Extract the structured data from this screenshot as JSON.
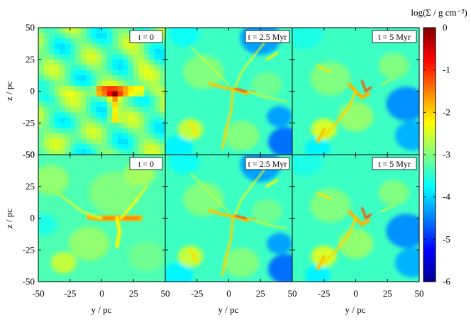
{
  "chart_data": {
    "type": "heatmap",
    "description_units": "projected gas surface density maps",
    "xlabel": "y / pc",
    "ylabel": "z / pc",
    "xlim": [
      -50,
      50
    ],
    "ylim": [
      -50,
      50
    ],
    "xticks": [
      -50,
      -25,
      0,
      25,
      50
    ],
    "yticks": [
      -50,
      -25,
      0,
      25,
      50
    ],
    "x_tick_labels": [
      "-50",
      "-25",
      "0",
      "25",
      "50"
    ],
    "y_tick_labels": [
      "-50",
      "-25",
      "0",
      "25",
      "50"
    ],
    "colorbar": {
      "label": "log(Σ / g cm⁻²)",
      "range": [
        -6,
        0
      ],
      "ticks": [
        0,
        -1,
        -2,
        -3,
        -4,
        -5,
        -6
      ],
      "tick_labels": [
        "0",
        "-1",
        "-2",
        "-3",
        "-4",
        "-5",
        "-6"
      ],
      "colormap": [
        "#00008f",
        "#0000ff",
        "#0080ff",
        "#00ffff",
        "#80ff80",
        "#ffff00",
        "#ff8000",
        "#ff0000",
        "#800000"
      ]
    },
    "grid": false,
    "panels": [
      {
        "row": 0,
        "col": 0,
        "label": "t = 0",
        "style": "blocky"
      },
      {
        "row": 0,
        "col": 1,
        "label": "t = 2.5 Myr",
        "style": "smooth"
      },
      {
        "row": 0,
        "col": 2,
        "label": "t = 5 Myr",
        "style": "smooth"
      },
      {
        "row": 1,
        "col": 0,
        "label": "t = 0",
        "style": "smooth"
      },
      {
        "row": 1,
        "col": 1,
        "label": "t = 2.5 Myr",
        "style": "smooth"
      },
      {
        "row": 1,
        "col": 2,
        "label": "t = 5 Myr",
        "style": "smooth"
      }
    ]
  }
}
